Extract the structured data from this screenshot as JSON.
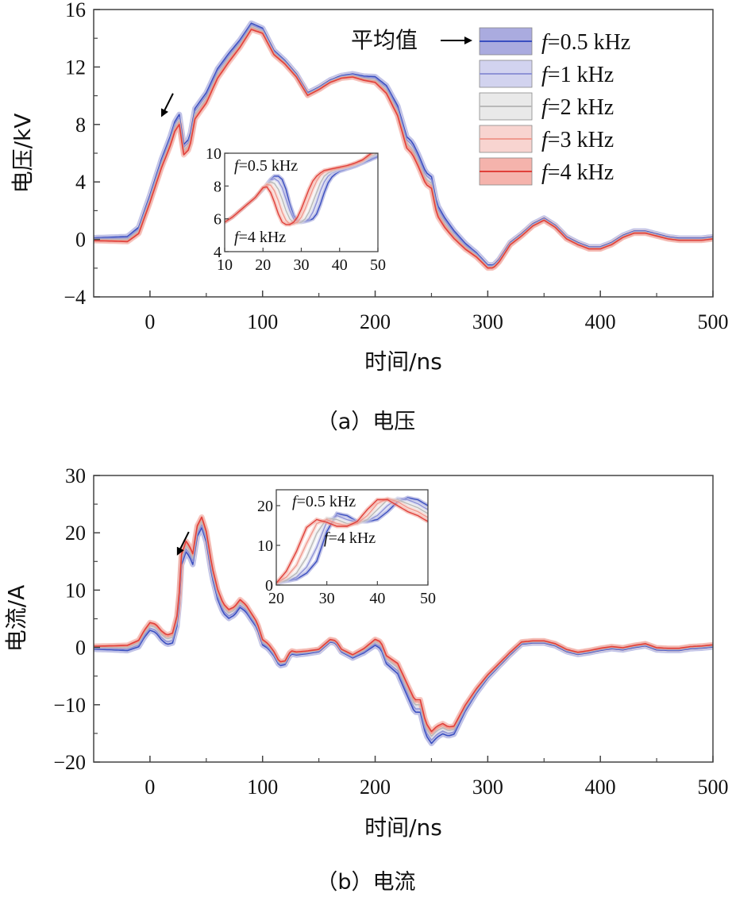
{
  "chart_data": [
    {
      "type": "line",
      "caption": "（a）电压",
      "xlabel": "时间/ns",
      "ylabel": "电压/kV",
      "xlim": [
        -50,
        500
      ],
      "ylim": [
        -4,
        16
      ],
      "xticks": [
        0,
        100,
        200,
        300,
        400,
        500
      ],
      "yticks": [
        -4,
        0,
        4,
        8,
        12,
        16
      ],
      "xtick_labels": [
        "0",
        "100",
        "200",
        "300",
        "400",
        "500"
      ],
      "ytick_labels": [
        "−4",
        "0",
        "4",
        "8",
        "12",
        "16"
      ],
      "legend": {
        "placement": "top-right",
        "mean_label": "平均值",
        "entries": [
          "=0.5 kHz",
          "=1 kHz",
          "=2 kHz",
          "=3 kHz",
          "=4 kHz"
        ],
        "var_prefix": "f"
      },
      "series_colors": [
        "#3a4fc0",
        "#8f93d6",
        "#b9b9b9",
        "#ef9a90",
        "#e0403a"
      ],
      "band_colors": [
        "#8d8fd4",
        "#c3c4ea",
        "#e2e2e2",
        "#f6c6c0",
        "#f19a90"
      ],
      "annotation_arrow": {
        "x": 12,
        "y": 8.5
      },
      "base": {
        "x": [
          -50,
          -30,
          -20,
          -10,
          0,
          10,
          18,
          22,
          26,
          30,
          35,
          40,
          50,
          60,
          70,
          80,
          90,
          100,
          110,
          120,
          130,
          140,
          150,
          160,
          170,
          180,
          190,
          200,
          210,
          220,
          228,
          233,
          238,
          245,
          250,
          255,
          262,
          270,
          280,
          290,
          300,
          305,
          310,
          320,
          330,
          340,
          350,
          360,
          370,
          380,
          390,
          400,
          410,
          420,
          430,
          440,
          450,
          460,
          470,
          480,
          490,
          500
        ],
        "y": [
          0,
          0,
          0,
          0.6,
          2.8,
          5.2,
          6.8,
          7.8,
          8.3,
          6.2,
          6.6,
          8.7,
          9.8,
          11.5,
          12.6,
          13.6,
          14.8,
          14.5,
          13.0,
          12.3,
          11.4,
          10.1,
          10.5,
          11.0,
          11.3,
          11.4,
          11.2,
          11.1,
          10.4,
          8.9,
          6.7,
          6.3,
          5.5,
          4.2,
          3.9,
          2.0,
          1.1,
          0.3,
          -0.5,
          -1.1,
          -1.9,
          -1.9,
          -1.5,
          -0.3,
          0.3,
          1.0,
          1.4,
          0.9,
          0.1,
          -0.3,
          -0.6,
          -0.6,
          -0.3,
          0.2,
          0.5,
          0.5,
          0.3,
          0.1,
          0.0,
          0.0,
          0.0,
          0.1
        ]
      },
      "inset": {
        "xlim": [
          10,
          50
        ],
        "ylim": [
          4,
          10
        ],
        "xticks": [
          10,
          20,
          30,
          40,
          50
        ],
        "yticks": [
          4,
          6,
          8,
          10
        ],
        "note_top": "=0.5 kHz",
        "note_bottom": "=4 kHz",
        "note_var": "f",
        "x": [
          10,
          12,
          14,
          16,
          18,
          19,
          20,
          21,
          22,
          23,
          24,
          25,
          26,
          27,
          28,
          29,
          30,
          31,
          32,
          33,
          34,
          35,
          36,
          37,
          38,
          39,
          40,
          42,
          44,
          46,
          48,
          50
        ],
        "series": [
          {
            "name": "=0.5 kHz",
            "values": [
              5.8,
              6.1,
              6.5,
              6.9,
              7.3,
              7.55,
              7.8,
              8.1,
              8.4,
              8.6,
              8.6,
              8.4,
              7.8,
              6.9,
              6.2,
              5.85,
              5.8,
              5.85,
              5.9,
              6.0,
              6.3,
              6.9,
              7.6,
              8.2,
              8.55,
              8.75,
              8.9,
              9.05,
              9.2,
              9.4,
              9.6,
              9.8
            ]
          },
          {
            "name": "=1 kHz",
            "values": [
              5.8,
              6.1,
              6.5,
              6.9,
              7.3,
              7.55,
              7.8,
              8.1,
              8.35,
              8.45,
              8.3,
              7.9,
              7.2,
              6.5,
              6.0,
              5.8,
              5.8,
              5.85,
              6.0,
              6.4,
              7.0,
              7.7,
              8.25,
              8.6,
              8.8,
              8.9,
              9.0,
              9.1,
              9.3,
              9.5,
              9.7,
              9.9
            ]
          },
          {
            "name": "=2 kHz",
            "values": [
              5.8,
              6.1,
              6.5,
              6.9,
              7.3,
              7.55,
              7.8,
              8.1,
              8.25,
              8.15,
              7.8,
              7.2,
              6.5,
              6.0,
              5.75,
              5.75,
              5.8,
              6.0,
              6.4,
              7.0,
              7.6,
              8.2,
              8.6,
              8.8,
              8.9,
              9.0,
              9.05,
              9.15,
              9.3,
              9.5,
              9.8,
              10.0
            ]
          },
          {
            "name": "=3 kHz",
            "values": [
              5.8,
              6.1,
              6.5,
              6.9,
              7.3,
              7.55,
              7.85,
              8.1,
              8.05,
              7.7,
              7.1,
              6.4,
              5.9,
              5.7,
              5.7,
              5.8,
              6.1,
              6.6,
              7.2,
              7.8,
              8.3,
              8.65,
              8.85,
              8.95,
              9.0,
              9.05,
              9.1,
              9.2,
              9.35,
              9.55,
              9.9,
              10.2
            ]
          },
          {
            "name": "=4 kHz",
            "values": [
              5.8,
              6.1,
              6.5,
              6.9,
              7.3,
              7.6,
              7.9,
              7.95,
              7.6,
              7.0,
              6.3,
              5.8,
              5.65,
              5.65,
              5.8,
              6.1,
              6.6,
              7.2,
              7.8,
              8.3,
              8.6,
              8.8,
              8.95,
              9.0,
              9.05,
              9.1,
              9.15,
              9.25,
              9.4,
              9.6,
              9.95,
              10.4
            ]
          }
        ]
      }
    },
    {
      "type": "line",
      "caption": "（b）电流",
      "xlabel": "时间/ns",
      "ylabel": "电流/A",
      "xlim": [
        -50,
        500
      ],
      "ylim": [
        -20,
        30
      ],
      "xticks": [
        0,
        100,
        200,
        300,
        400,
        500
      ],
      "yticks": [
        -20,
        -10,
        0,
        10,
        20,
        30
      ],
      "xtick_labels": [
        "0",
        "100",
        "200",
        "300",
        "400",
        "500"
      ],
      "ytick_labels": [
        "−20",
        "−10",
        "0",
        "10",
        "20",
        "30"
      ],
      "series_colors": [
        "#3a4fc0",
        "#8f93d6",
        "#b9b9b9",
        "#ef9a90",
        "#e0403a"
      ],
      "band_colors": [
        "#8d8fd4",
        "#c3c4ea",
        "#e2e2e2",
        "#f6c6c0",
        "#f19a90"
      ],
      "annotation_arrow": {
        "x": 26,
        "y": 16
      },
      "base": {
        "x": [
          -50,
          -20,
          -10,
          -5,
          0,
          5,
          10,
          15,
          20,
          25,
          28,
          32,
          35,
          38,
          42,
          46,
          50,
          55,
          60,
          65,
          70,
          75,
          80,
          85,
          90,
          95,
          100,
          105,
          110,
          115,
          120,
          125,
          130,
          140,
          150,
          160,
          165,
          170,
          180,
          190,
          200,
          205,
          210,
          220,
          228,
          235,
          240,
          245,
          250,
          255,
          260,
          265,
          270,
          280,
          290,
          300,
          310,
          320,
          330,
          340,
          350,
          360,
          370,
          380,
          390,
          400,
          410,
          420,
          430,
          440,
          450,
          460,
          470,
          480,
          490,
          500
        ],
        "y": [
          0,
          0,
          0.8,
          2.5,
          3.8,
          3.5,
          2.3,
          1.5,
          1.8,
          5.5,
          15.5,
          17.8,
          17.0,
          15.6,
          20.5,
          22.0,
          19.5,
          13.5,
          9.5,
          7.0,
          6.0,
          6.5,
          7.8,
          7.0,
          5.5,
          4.0,
          1.0,
          0.3,
          -1.0,
          -2.8,
          -2.6,
          -0.8,
          -1.0,
          -0.8,
          -0.5,
          1.2,
          1.0,
          -0.5,
          -1.5,
          -0.5,
          1.0,
          0.5,
          -2.0,
          -3.5,
          -7.0,
          -10.0,
          -10.0,
          -14.0,
          -15.5,
          -14.5,
          -14.0,
          -14.5,
          -14.3,
          -10.5,
          -7.5,
          -5.0,
          -3.0,
          -1.0,
          0.8,
          1.0,
          1.0,
          0.5,
          -0.5,
          -1.0,
          -0.7,
          -0.3,
          0.0,
          -0.2,
          0.2,
          0.5,
          -0.2,
          -0.3,
          -0.3,
          0.0,
          0.1,
          0.3
        ]
      },
      "inset": {
        "xlim": [
          20,
          50
        ],
        "ylim": [
          0,
          24
        ],
        "xticks": [
          20,
          30,
          40,
          50
        ],
        "yticks": [
          0,
          10,
          20
        ],
        "note_top": "=0.5 kHz",
        "note_bottom": "=4 kHz",
        "note_var": "f",
        "x": [
          20,
          22,
          24,
          26,
          28,
          30,
          32,
          34,
          36,
          38,
          40,
          42,
          44,
          46,
          48,
          50
        ],
        "series": [
          {
            "name": "=0.5 kHz",
            "values": [
              0.5,
              1.0,
              1.5,
              3.0,
              6.0,
              13.5,
              18.0,
              17.5,
              16.0,
              16.0,
              16.5,
              18.5,
              21.0,
              22.0,
              21.5,
              20.0
            ]
          },
          {
            "name": "=1 kHz",
            "values": [
              0.5,
              1.0,
              2.0,
              4.5,
              9.5,
              16.0,
              17.5,
              16.5,
              15.8,
              16.2,
              17.5,
              20.0,
              21.8,
              21.5,
              20.5,
              19.0
            ]
          },
          {
            "name": "=2 kHz",
            "values": [
              0.5,
              1.2,
              3.0,
              7.0,
              13.0,
              16.8,
              16.5,
              15.5,
              15.5,
              16.5,
              19.0,
              21.5,
              21.5,
              20.5,
              19.5,
              18.0
            ]
          },
          {
            "name": "=3 kHz",
            "values": [
              0.5,
              2.0,
              5.0,
              10.5,
              15.5,
              16.5,
              15.5,
              15.0,
              15.5,
              17.5,
              20.5,
              21.8,
              21.0,
              19.5,
              18.5,
              17.0
            ]
          },
          {
            "name": "=4 kHz",
            "values": [
              0.5,
              3.5,
              8.5,
              14.5,
              16.5,
              15.8,
              14.8,
              14.8,
              16.0,
              19.0,
              21.5,
              21.5,
              20.0,
              18.5,
              17.5,
              16.0
            ]
          }
        ]
      }
    }
  ]
}
